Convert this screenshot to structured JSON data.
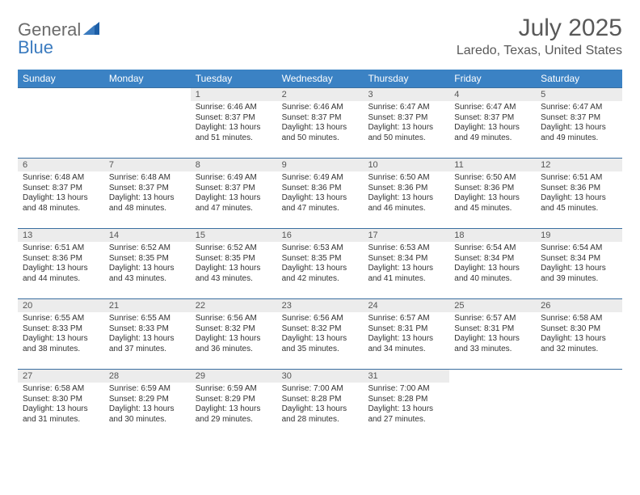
{
  "logo": {
    "part1": "General",
    "part2": "Blue"
  },
  "title": "July 2025",
  "location": "Laredo, Texas, United States",
  "colors": {
    "header_bg": "#3b82c4",
    "header_text": "#ffffff",
    "daynum_bg": "#ececec",
    "border": "#3b6fa0",
    "text": "#333333",
    "title_color": "#595959",
    "logo_gray": "#6b6b6b",
    "logo_blue": "#3b7bbf"
  },
  "dow": [
    "Sunday",
    "Monday",
    "Tuesday",
    "Wednesday",
    "Thursday",
    "Friday",
    "Saturday"
  ],
  "weeks": [
    [
      {
        "n": "",
        "sr": "",
        "ss": "",
        "dl": ""
      },
      {
        "n": "",
        "sr": "",
        "ss": "",
        "dl": ""
      },
      {
        "n": "1",
        "sr": "Sunrise: 6:46 AM",
        "ss": "Sunset: 8:37 PM",
        "dl": "Daylight: 13 hours and 51 minutes."
      },
      {
        "n": "2",
        "sr": "Sunrise: 6:46 AM",
        "ss": "Sunset: 8:37 PM",
        "dl": "Daylight: 13 hours and 50 minutes."
      },
      {
        "n": "3",
        "sr": "Sunrise: 6:47 AM",
        "ss": "Sunset: 8:37 PM",
        "dl": "Daylight: 13 hours and 50 minutes."
      },
      {
        "n": "4",
        "sr": "Sunrise: 6:47 AM",
        "ss": "Sunset: 8:37 PM",
        "dl": "Daylight: 13 hours and 49 minutes."
      },
      {
        "n": "5",
        "sr": "Sunrise: 6:47 AM",
        "ss": "Sunset: 8:37 PM",
        "dl": "Daylight: 13 hours and 49 minutes."
      }
    ],
    [
      {
        "n": "6",
        "sr": "Sunrise: 6:48 AM",
        "ss": "Sunset: 8:37 PM",
        "dl": "Daylight: 13 hours and 48 minutes."
      },
      {
        "n": "7",
        "sr": "Sunrise: 6:48 AM",
        "ss": "Sunset: 8:37 PM",
        "dl": "Daylight: 13 hours and 48 minutes."
      },
      {
        "n": "8",
        "sr": "Sunrise: 6:49 AM",
        "ss": "Sunset: 8:37 PM",
        "dl": "Daylight: 13 hours and 47 minutes."
      },
      {
        "n": "9",
        "sr": "Sunrise: 6:49 AM",
        "ss": "Sunset: 8:36 PM",
        "dl": "Daylight: 13 hours and 47 minutes."
      },
      {
        "n": "10",
        "sr": "Sunrise: 6:50 AM",
        "ss": "Sunset: 8:36 PM",
        "dl": "Daylight: 13 hours and 46 minutes."
      },
      {
        "n": "11",
        "sr": "Sunrise: 6:50 AM",
        "ss": "Sunset: 8:36 PM",
        "dl": "Daylight: 13 hours and 45 minutes."
      },
      {
        "n": "12",
        "sr": "Sunrise: 6:51 AM",
        "ss": "Sunset: 8:36 PM",
        "dl": "Daylight: 13 hours and 45 minutes."
      }
    ],
    [
      {
        "n": "13",
        "sr": "Sunrise: 6:51 AM",
        "ss": "Sunset: 8:36 PM",
        "dl": "Daylight: 13 hours and 44 minutes."
      },
      {
        "n": "14",
        "sr": "Sunrise: 6:52 AM",
        "ss": "Sunset: 8:35 PM",
        "dl": "Daylight: 13 hours and 43 minutes."
      },
      {
        "n": "15",
        "sr": "Sunrise: 6:52 AM",
        "ss": "Sunset: 8:35 PM",
        "dl": "Daylight: 13 hours and 43 minutes."
      },
      {
        "n": "16",
        "sr": "Sunrise: 6:53 AM",
        "ss": "Sunset: 8:35 PM",
        "dl": "Daylight: 13 hours and 42 minutes."
      },
      {
        "n": "17",
        "sr": "Sunrise: 6:53 AM",
        "ss": "Sunset: 8:34 PM",
        "dl": "Daylight: 13 hours and 41 minutes."
      },
      {
        "n": "18",
        "sr": "Sunrise: 6:54 AM",
        "ss": "Sunset: 8:34 PM",
        "dl": "Daylight: 13 hours and 40 minutes."
      },
      {
        "n": "19",
        "sr": "Sunrise: 6:54 AM",
        "ss": "Sunset: 8:34 PM",
        "dl": "Daylight: 13 hours and 39 minutes."
      }
    ],
    [
      {
        "n": "20",
        "sr": "Sunrise: 6:55 AM",
        "ss": "Sunset: 8:33 PM",
        "dl": "Daylight: 13 hours and 38 minutes."
      },
      {
        "n": "21",
        "sr": "Sunrise: 6:55 AM",
        "ss": "Sunset: 8:33 PM",
        "dl": "Daylight: 13 hours and 37 minutes."
      },
      {
        "n": "22",
        "sr": "Sunrise: 6:56 AM",
        "ss": "Sunset: 8:32 PM",
        "dl": "Daylight: 13 hours and 36 minutes."
      },
      {
        "n": "23",
        "sr": "Sunrise: 6:56 AM",
        "ss": "Sunset: 8:32 PM",
        "dl": "Daylight: 13 hours and 35 minutes."
      },
      {
        "n": "24",
        "sr": "Sunrise: 6:57 AM",
        "ss": "Sunset: 8:31 PM",
        "dl": "Daylight: 13 hours and 34 minutes."
      },
      {
        "n": "25",
        "sr": "Sunrise: 6:57 AM",
        "ss": "Sunset: 8:31 PM",
        "dl": "Daylight: 13 hours and 33 minutes."
      },
      {
        "n": "26",
        "sr": "Sunrise: 6:58 AM",
        "ss": "Sunset: 8:30 PM",
        "dl": "Daylight: 13 hours and 32 minutes."
      }
    ],
    [
      {
        "n": "27",
        "sr": "Sunrise: 6:58 AM",
        "ss": "Sunset: 8:30 PM",
        "dl": "Daylight: 13 hours and 31 minutes."
      },
      {
        "n": "28",
        "sr": "Sunrise: 6:59 AM",
        "ss": "Sunset: 8:29 PM",
        "dl": "Daylight: 13 hours and 30 minutes."
      },
      {
        "n": "29",
        "sr": "Sunrise: 6:59 AM",
        "ss": "Sunset: 8:29 PM",
        "dl": "Daylight: 13 hours and 29 minutes."
      },
      {
        "n": "30",
        "sr": "Sunrise: 7:00 AM",
        "ss": "Sunset: 8:28 PM",
        "dl": "Daylight: 13 hours and 28 minutes."
      },
      {
        "n": "31",
        "sr": "Sunrise: 7:00 AM",
        "ss": "Sunset: 8:28 PM",
        "dl": "Daylight: 13 hours and 27 minutes."
      },
      {
        "n": "",
        "sr": "",
        "ss": "",
        "dl": ""
      },
      {
        "n": "",
        "sr": "",
        "ss": "",
        "dl": ""
      }
    ]
  ]
}
